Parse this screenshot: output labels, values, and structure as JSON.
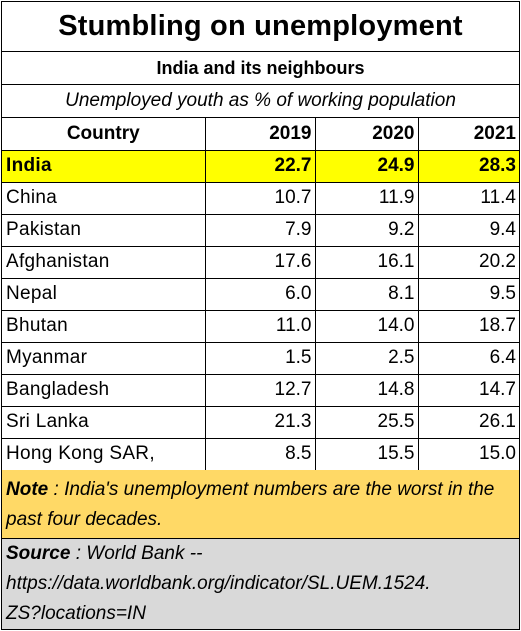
{
  "header": {
    "title": "Stumbling on  unemployment",
    "subtitle": "India and its neighbours",
    "caption": "Unemployed youth as % of working population"
  },
  "chart_data": {
    "type": "table",
    "columns": [
      "Country",
      "2019",
      "2020",
      "2021"
    ],
    "rows": [
      {
        "country": "India",
        "values": [
          "22.7",
          "24.9",
          "28.3"
        ],
        "highlight": true
      },
      {
        "country": "China",
        "values": [
          "10.7",
          "11.9",
          "11.4"
        ],
        "highlight": false
      },
      {
        "country": "Pakistan",
        "values": [
          "7.9",
          "9.2",
          "9.4"
        ],
        "highlight": false
      },
      {
        "country": "Afghanistan",
        "values": [
          "17.6",
          "16.1",
          "20.2"
        ],
        "highlight": false
      },
      {
        "country": "Nepal",
        "values": [
          "6.0",
          "8.1",
          "9.5"
        ],
        "highlight": false
      },
      {
        "country": "Bhutan",
        "values": [
          "11.0",
          "14.0",
          "18.7"
        ],
        "highlight": false
      },
      {
        "country": "Myanmar",
        "values": [
          "1.5",
          "2.5",
          "6.4"
        ],
        "highlight": false
      },
      {
        "country": "Bangladesh",
        "values": [
          "12.7",
          "14.8",
          "14.7"
        ],
        "highlight": false
      },
      {
        "country": "Sri Lanka",
        "values": [
          "21.3",
          "25.5",
          "26.1"
        ],
        "highlight": false
      },
      {
        "country": "Hong Kong SAR,",
        "values": [
          "8.5",
          "15.5",
          "15.0"
        ],
        "highlight": false
      }
    ]
  },
  "note": {
    "label": "Note",
    "text": " : India's unemployment numbers are the worst in the past four decades."
  },
  "source": {
    "label": "Source",
    "line1": " : World Bank --",
    "line2": "https://data.worldbank.org/indicator/SL.UEM.1524.",
    "line3": "ZS?locations=IN"
  },
  "colors": {
    "highlight_row": "#ffff00",
    "note_background": "#ffd966",
    "source_background": "#d9d9d9"
  }
}
